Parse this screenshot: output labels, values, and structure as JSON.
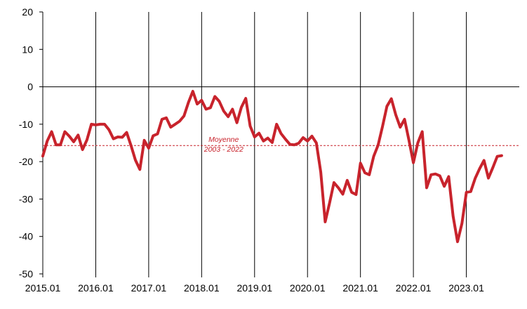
{
  "chart_data": {
    "type": "line",
    "title": "",
    "xlabel": "",
    "ylabel": "",
    "ylim": [
      -50,
      20
    ],
    "yticks": [
      20,
      10,
      0,
      -10,
      -20,
      -30,
      -40,
      -50
    ],
    "xticks": [
      "2015.01",
      "2016.01",
      "2017.01",
      "2018.01",
      "2019.01",
      "2020.01",
      "2021.01",
      "2022.01",
      "2023.01"
    ],
    "x_start": "2015-01",
    "x_end": "2023-12",
    "grid": "vertical lines at each January",
    "series": [
      {
        "color": "#c8232c",
        "x": [
          "2015-01",
          "2015-02",
          "2015-03",
          "2015-04",
          "2015-05",
          "2015-06",
          "2015-07",
          "2015-08",
          "2015-09",
          "2015-10",
          "2015-11",
          "2015-12",
          "2016-01",
          "2016-02",
          "2016-03",
          "2016-04",
          "2016-05",
          "2016-06",
          "2016-07",
          "2016-08",
          "2016-09",
          "2016-10",
          "2016-11",
          "2016-12",
          "2017-01",
          "2017-02",
          "2017-03",
          "2017-04",
          "2017-05",
          "2017-06",
          "2017-07",
          "2017-08",
          "2017-09",
          "2017-10",
          "2017-11",
          "2017-12",
          "2018-01",
          "2018-02",
          "2018-03",
          "2018-04",
          "2018-05",
          "2018-06",
          "2018-07",
          "2018-08",
          "2018-09",
          "2018-10",
          "2018-11",
          "2018-12",
          "2019-01",
          "2019-02",
          "2019-03",
          "2019-04",
          "2019-05",
          "2019-06",
          "2019-07",
          "2019-08",
          "2019-09",
          "2019-10",
          "2019-11",
          "2019-12",
          "2020-01",
          "2020-02",
          "2020-03",
          "2020-04",
          "2020-05",
          "2020-06",
          "2020-07",
          "2020-08",
          "2020-09",
          "2020-10",
          "2020-11",
          "2020-12",
          "2021-01",
          "2021-02",
          "2021-03",
          "2021-04",
          "2021-05",
          "2021-06",
          "2021-07",
          "2021-08",
          "2021-09",
          "2021-10",
          "2021-11",
          "2021-12",
          "2022-01",
          "2022-02",
          "2022-03",
          "2022-04",
          "2022-05",
          "2022-06",
          "2022-07",
          "2022-08",
          "2022-09",
          "2022-10",
          "2022-11",
          "2022-12",
          "2023-01",
          "2023-02",
          "2023-03",
          "2023-04",
          "2023-05",
          "2023-06",
          "2023-07",
          "2023-08",
          "2023-09"
        ],
        "values": [
          -18.5,
          -14.5,
          -12,
          -15.5,
          -15.5,
          -12,
          -13.2,
          -14.7,
          -12.9,
          -16.8,
          -14.2,
          -10,
          -10.2,
          -10,
          -10,
          -11.5,
          -13.9,
          -13.4,
          -13.5,
          -12.2,
          -15.7,
          -19.6,
          -22.1,
          -14.3,
          -16.4,
          -13.1,
          -12.6,
          -8.7,
          -8.3,
          -10.8,
          -10,
          -9.2,
          -7.8,
          -4.2,
          -1.2,
          -4.6,
          -3.6,
          -6,
          -5.6,
          -2.6,
          -3.9,
          -6.5,
          -8,
          -6,
          -9.6,
          -5.5,
          -3.1,
          -10.5,
          -13.4,
          -12.4,
          -14.5,
          -13.7,
          -14.9,
          -10,
          -12.5,
          -14,
          -15.4,
          -15.5,
          -15.1,
          -13.6,
          -14.5,
          -13.2,
          -15,
          -22.8,
          -36.1,
          -31,
          -25.6,
          -27,
          -28.7,
          -25,
          -28.2,
          -28.8,
          -20.4,
          -23,
          -23.5,
          -18.6,
          -15.6,
          -10.6,
          -5.2,
          -3.2,
          -7.5,
          -10.8,
          -8.7,
          -14.3,
          -20.3,
          -15,
          -12,
          -27,
          -23.5,
          -23.3,
          -23.8,
          -26.6,
          -24,
          -34.6,
          -41.4,
          -36.5,
          -28.2,
          -28,
          -24.5,
          -21.9,
          -19.7,
          -24.4,
          -21.6,
          -18.6,
          -18.4
        ]
      }
    ],
    "reference_line": {
      "value": -15.7,
      "label_line1": "Moyenne",
      "label_line2": "2003 - 2022",
      "color": "#c8232c"
    }
  }
}
